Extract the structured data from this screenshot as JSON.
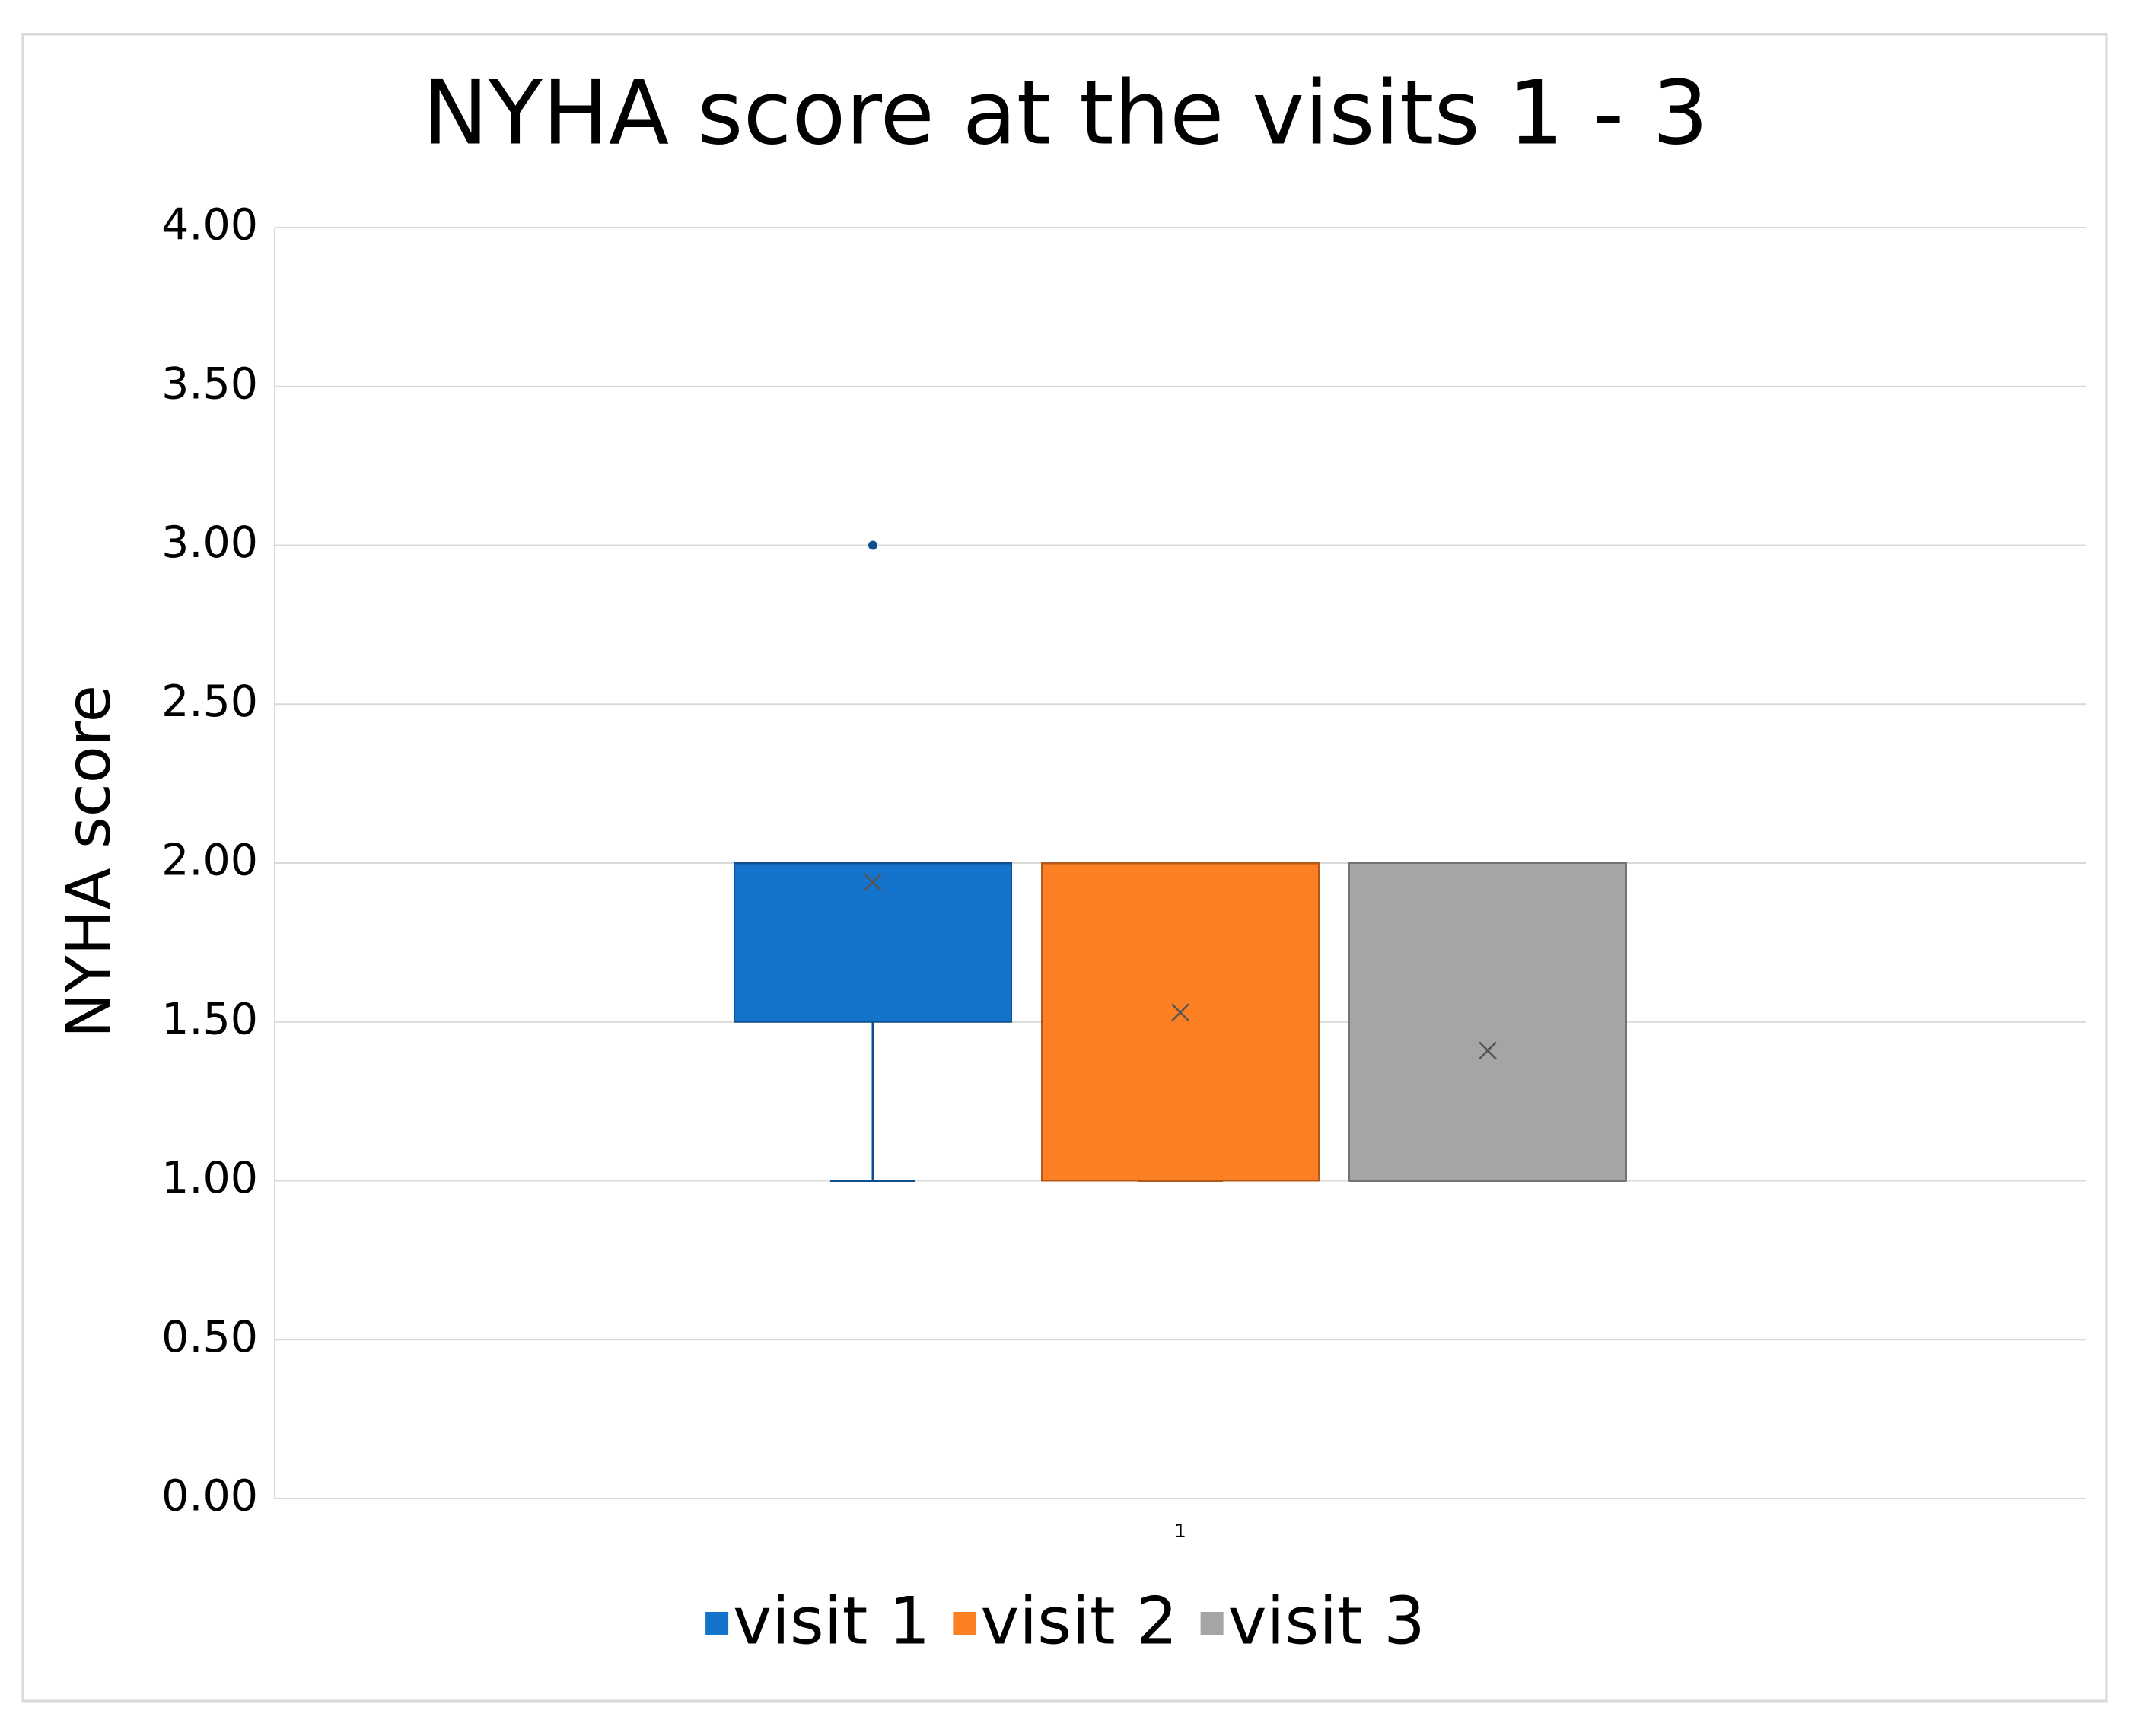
{
  "chart_data": {
    "type": "box",
    "title": "NYHA score at the visits 1 - 3",
    "y_label": "NYHA score",
    "categories": [
      "1"
    ],
    "ylim": [
      0,
      4
    ],
    "yticks": [
      {
        "value": 0,
        "label": "0.00"
      },
      {
        "value": 0.5,
        "label": "0.50"
      },
      {
        "value": 1,
        "label": "1.00"
      },
      {
        "value": 1.5,
        "label": "1.50"
      },
      {
        "value": 2,
        "label": "2.00"
      },
      {
        "value": 2.5,
        "label": "2.50"
      },
      {
        "value": 3,
        "label": "3.00"
      },
      {
        "value": 3.5,
        "label": "3.50"
      },
      {
        "value": 4,
        "label": "4.00"
      }
    ],
    "grid": true,
    "legend": "bottom",
    "series": [
      {
        "name": "visit 1",
        "color": "#1473cb",
        "whisker_low": 1,
        "q1": 1.5,
        "median": 2,
        "q3": 2,
        "whisker_high": 2,
        "mean": 1.94,
        "outliers": [
          3
        ]
      },
      {
        "name": "visit 2",
        "color": "#fd7f23",
        "whisker_low": 1,
        "q1": 1,
        "median": 2,
        "q3": 2,
        "whisker_high": 2,
        "mean": 1.53,
        "outliers": []
      },
      {
        "name": "visit 3",
        "color": "#a5a5a5",
        "whisker_low": 1,
        "q1": 1,
        "median": 1,
        "q3": 2,
        "whisker_high": 2,
        "mean": 1.41,
        "outliers": []
      }
    ]
  }
}
